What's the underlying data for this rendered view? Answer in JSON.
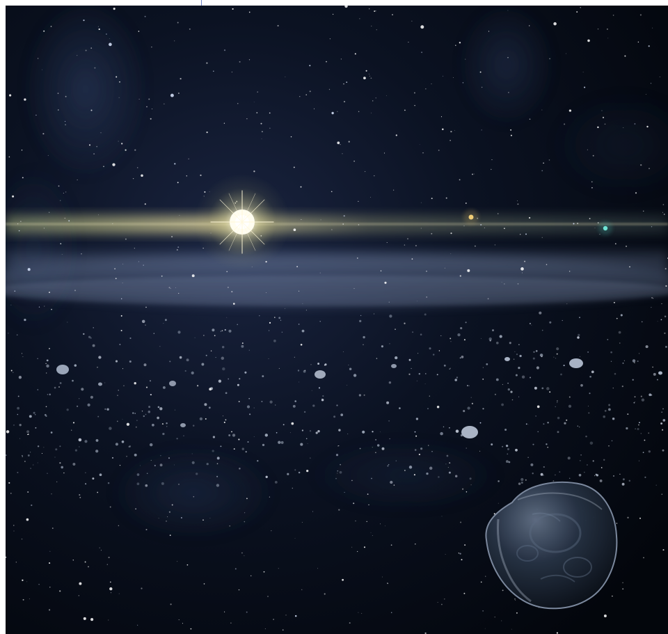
{
  "scene": {
    "elements": [
      "starfield",
      "milky-way-band",
      "bright-star",
      "distant-planet-amber",
      "distant-planet-teal",
      "debris-disk",
      "small-asteroids",
      "large-asteroid"
    ],
    "colors": {
      "background": "#04070d",
      "nebula": "#3b4f7a",
      "disk_glow": "#8fa3c8",
      "star_core": "#fffbe8",
      "star_halo": "#d9d38a",
      "planet_amber": "#e3c06a",
      "planet_teal": "#4fd5c7",
      "asteroid": "#8f98aa",
      "large_asteroid": "#1e2633",
      "top_divider": "#6f83c8"
    }
  }
}
